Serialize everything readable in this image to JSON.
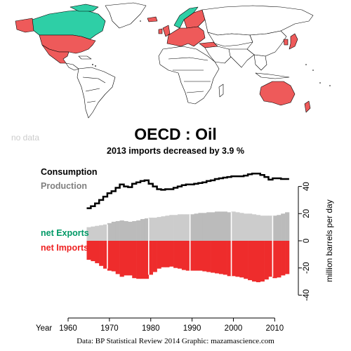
{
  "header": {
    "title": "OECD :  Oil",
    "subtitle": "2013 imports decreased by 3.9 %"
  },
  "map": {
    "no_data_label": "no data",
    "colors": {
      "exporter": "#2ecfa6",
      "importer": "#ee5a5a",
      "non_member": "#ffffff",
      "border": "#000000"
    },
    "net_exporters": [
      "Canada",
      "Norway"
    ],
    "net_importers": [
      "United States",
      "Mexico",
      "Europe (OECD)",
      "Japan",
      "South Korea",
      "Australia",
      "New Zealand"
    ]
  },
  "credit": "Data: BP Statistical Review 2014    Graphic: mazamascience.com",
  "chart_data": {
    "type": "area",
    "xlabel": "Year",
    "ylabel": "million barrels per day",
    "xlim": [
      1958,
      2015
    ],
    "ylim": [
      -42,
      48
    ],
    "x_ticks": [
      1960,
      1970,
      1980,
      1990,
      2000,
      2010
    ],
    "y_ticks": [
      -40,
      -20,
      0,
      20,
      40
    ],
    "grid": false,
    "legend": [
      {
        "label": "Consumption",
        "color": "#000000"
      },
      {
        "label": "Production",
        "color": "#808080"
      },
      {
        "label": "net Exports",
        "color": "#009966"
      },
      {
        "label": "net Imports",
        "color": "#ee2222"
      }
    ],
    "colors": {
      "consumption": "#000000",
      "production_light": "#cccccc",
      "production_dark": "#bbbbbb",
      "imports": "#ee2c2c",
      "decade_line": "#ffffff"
    },
    "years": [
      1965,
      1966,
      1967,
      1968,
      1969,
      1970,
      1971,
      1972,
      1973,
      1974,
      1975,
      1976,
      1977,
      1978,
      1979,
      1980,
      1981,
      1982,
      1983,
      1984,
      1985,
      1986,
      1987,
      1988,
      1989,
      1990,
      1991,
      1992,
      1993,
      1994,
      1995,
      1996,
      1997,
      1998,
      1999,
      2000,
      2001,
      2002,
      2003,
      2004,
      2005,
      2006,
      2007,
      2008,
      2009,
      2010,
      2011,
      2012,
      2013
    ],
    "series": [
      {
        "name": "Consumption",
        "values": [
          24,
          25.5,
          27.5,
          30,
          32.5,
          35,
          36.5,
          39,
          41.5,
          40,
          39.5,
          42,
          43,
          44,
          44.5,
          42,
          40,
          38,
          37.5,
          38,
          38,
          39,
          40,
          41,
          41.5,
          41.5,
          42,
          42.5,
          43,
          44,
          44.5,
          45.5,
          46,
          46.5,
          47,
          47.5,
          47.5,
          47.5,
          48,
          49,
          49.5,
          49.5,
          48.5,
          47,
          45,
          46,
          46,
          45.5,
          45.5
        ]
      },
      {
        "name": "Production",
        "values": [
          10,
          10.5,
          11,
          11.5,
          12,
          13,
          14,
          14.5,
          15,
          14.5,
          14,
          14.5,
          15,
          16,
          16.5,
          17,
          17,
          17.5,
          18,
          18.5,
          19,
          19,
          19.5,
          19.5,
          19.5,
          19.5,
          20,
          20.5,
          20.5,
          21,
          21,
          21.5,
          21.5,
          21.5,
          21,
          21.5,
          21,
          20.5,
          20,
          20,
          19.5,
          19,
          18.5,
          18.5,
          18.5,
          18.5,
          19,
          20,
          21
        ]
      },
      {
        "name": "net Imports",
        "values": [
          -14,
          -15,
          -16.5,
          -18.5,
          -20.5,
          -22,
          -22.5,
          -24.5,
          -26.5,
          -25.5,
          -25.5,
          -27.5,
          -28,
          -28,
          -28,
          -25,
          -23,
          -20.5,
          -19.5,
          -19.5,
          -19,
          -20,
          -20.5,
          -21.5,
          -22,
          -22,
          -22,
          -22,
          -22.5,
          -23,
          -23.5,
          -24,
          -24.5,
          -25,
          -26,
          -26,
          -26.5,
          -27,
          -28,
          -29,
          -30,
          -30.5,
          -30,
          -28.5,
          -26.5,
          -27.5,
          -27,
          -25.5,
          -24.5
        ]
      }
    ]
  }
}
